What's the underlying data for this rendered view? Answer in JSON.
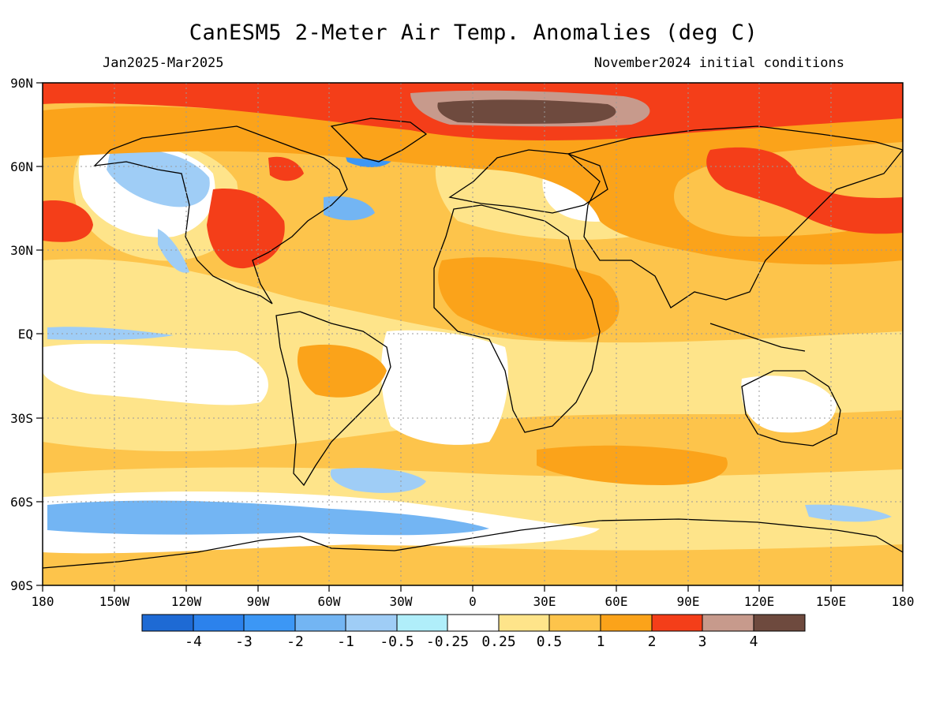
{
  "header": {
    "title": "CanESM5 2-Meter Air Temp. Anomalies (deg C)",
    "period": "Jan2025-Mar2025",
    "init": "November2024 initial conditions"
  },
  "map": {
    "lon_labels": [
      "180",
      "150W",
      "120W",
      "90W",
      "60W",
      "30W",
      "0",
      "30E",
      "60E",
      "90E",
      "120E",
      "150E",
      "180"
    ],
    "lat_labels": [
      "90N",
      "60N",
      "30N",
      "EQ",
      "30S",
      "60S",
      "90S"
    ],
    "lon_range": [
      -180,
      180
    ],
    "lat_range": [
      -90,
      90
    ],
    "grid": true,
    "background_color": "#fdc44b"
  },
  "colorbar": {
    "labels": [
      "-4",
      "-3",
      "-2",
      "-1",
      "-0.5",
      "-0.25",
      "0.25",
      "0.5",
      "1",
      "2",
      "3",
      "4"
    ],
    "colors": [
      "#1e6ad4",
      "#2c82ec",
      "#3c97f5",
      "#73b5f3",
      "#9fcdf6",
      "#b0eefa",
      "#ffffff",
      "#fee48a",
      "#fdc44b",
      "#fba31a",
      "#f43e19",
      "#c79a8c",
      "#6e4a3e"
    ]
  },
  "regions": [
    {
      "name": "arctic-siberia-peak",
      "color": "#6e4a3e"
    },
    {
      "name": "alaska-cold",
      "color": "#9fcdf6"
    },
    {
      "name": "southern-ocean-cold",
      "color": "#73b5f3"
    },
    {
      "name": "eastern-us-warm",
      "color": "#f43e19"
    },
    {
      "name": "east-asia-warm",
      "color": "#f43e19"
    }
  ]
}
